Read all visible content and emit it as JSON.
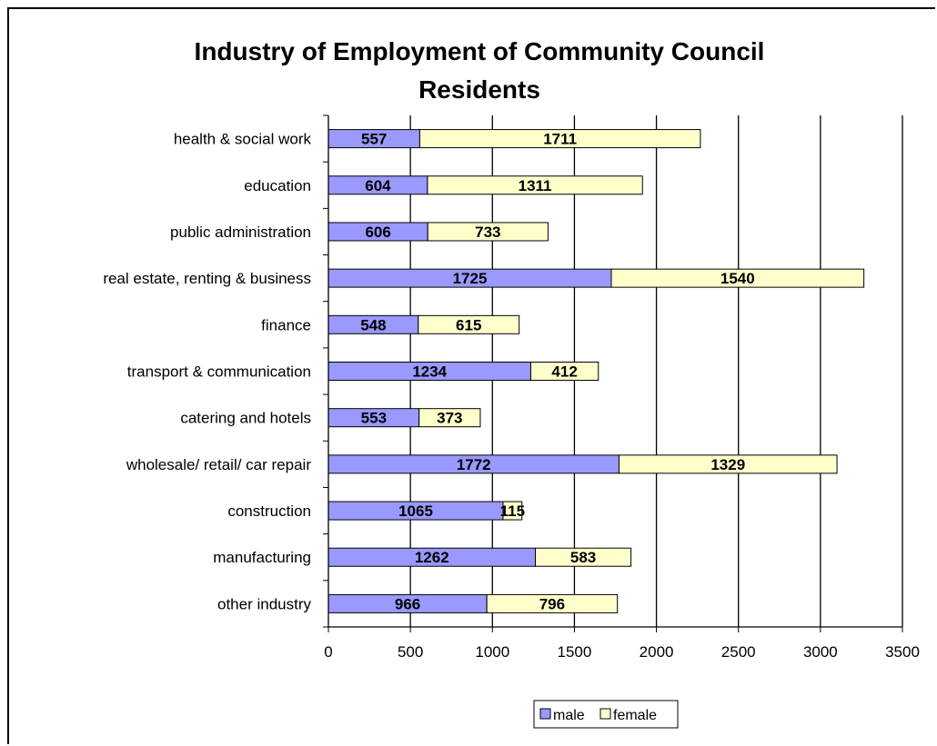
{
  "chart_data": {
    "type": "bar",
    "orientation": "horizontal",
    "stacked": true,
    "title": "Industry of Employment of Community Council Residents",
    "title_lines": [
      "Industry of Employment of Community Council",
      "Residents"
    ],
    "categories": [
      "health & social work",
      "education",
      "public administration",
      "real estate, renting & business",
      "finance",
      "transport & communication",
      "catering and hotels",
      "wholesale/ retail/ car repair",
      "construction",
      "manufacturing",
      "other industry"
    ],
    "series": [
      {
        "name": "male",
        "color": "#9999ff",
        "values": [
          557,
          604,
          606,
          1725,
          548,
          1234,
          553,
          1772,
          1065,
          1262,
          966
        ]
      },
      {
        "name": "female",
        "color": "#ffffcc",
        "values": [
          1711,
          1311,
          733,
          1540,
          615,
          412,
          373,
          1329,
          115,
          583,
          796
        ]
      }
    ],
    "xlim": [
      0,
      3500
    ],
    "xticks": [
      0,
      500,
      1000,
      1500,
      2000,
      2500,
      3000,
      3500
    ],
    "grid": "vertical",
    "legend": "bottom"
  }
}
